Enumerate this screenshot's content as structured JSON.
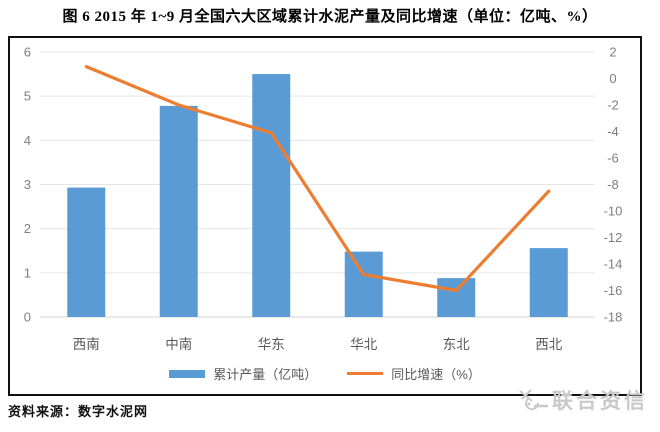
{
  "title": "图 6 2015 年 1~9 月全国六大区域累计水泥产量及同比增速（单位：亿吨、%）",
  "source_note": "资料来源：数字水泥网",
  "watermark": {
    "text": "联合资信"
  },
  "colors": {
    "bar": "#5B9BD5",
    "line": "#ED7D31",
    "grid": "#E5E5E5",
    "axis_line": "#D6D6D6",
    "tick_label": "#7F7F7F",
    "category_label": "#595959",
    "watermark": "#C9C9C9"
  },
  "legend": [
    {
      "label": "累计产量（亿吨）",
      "type": "bar"
    },
    {
      "label": "同比增速（%）",
      "type": "line"
    }
  ],
  "chart_data": {
    "type": "bar",
    "subtype": "bar+line dual axis",
    "categories": [
      "西南",
      "中南",
      "华东",
      "华北",
      "东北",
      "西北"
    ],
    "series": [
      {
        "name": "累计产量（亿吨）",
        "type": "bar",
        "axis": "left",
        "values": [
          2.93,
          4.78,
          5.5,
          1.48,
          0.88,
          1.56
        ]
      },
      {
        "name": "同比增速（%）",
        "type": "line",
        "axis": "right",
        "values": [
          0.9,
          -2.0,
          -4.1,
          -14.8,
          -16.0,
          -8.5
        ]
      }
    ],
    "left_axis": {
      "min": 0,
      "max": 6,
      "ticks": [
        6,
        5,
        4,
        3,
        2,
        1,
        0
      ]
    },
    "right_axis": {
      "min": -18,
      "max": 2,
      "ticks": [
        2,
        0,
        -2,
        -4,
        -6,
        -8,
        -10,
        -12,
        -14,
        -16,
        -18
      ]
    },
    "grid": true,
    "legend_position": "bottom",
    "title": "图 6 2015 年 1~9 月全国六大区域累计水泥产量及同比增速（单位：亿吨、%）"
  }
}
